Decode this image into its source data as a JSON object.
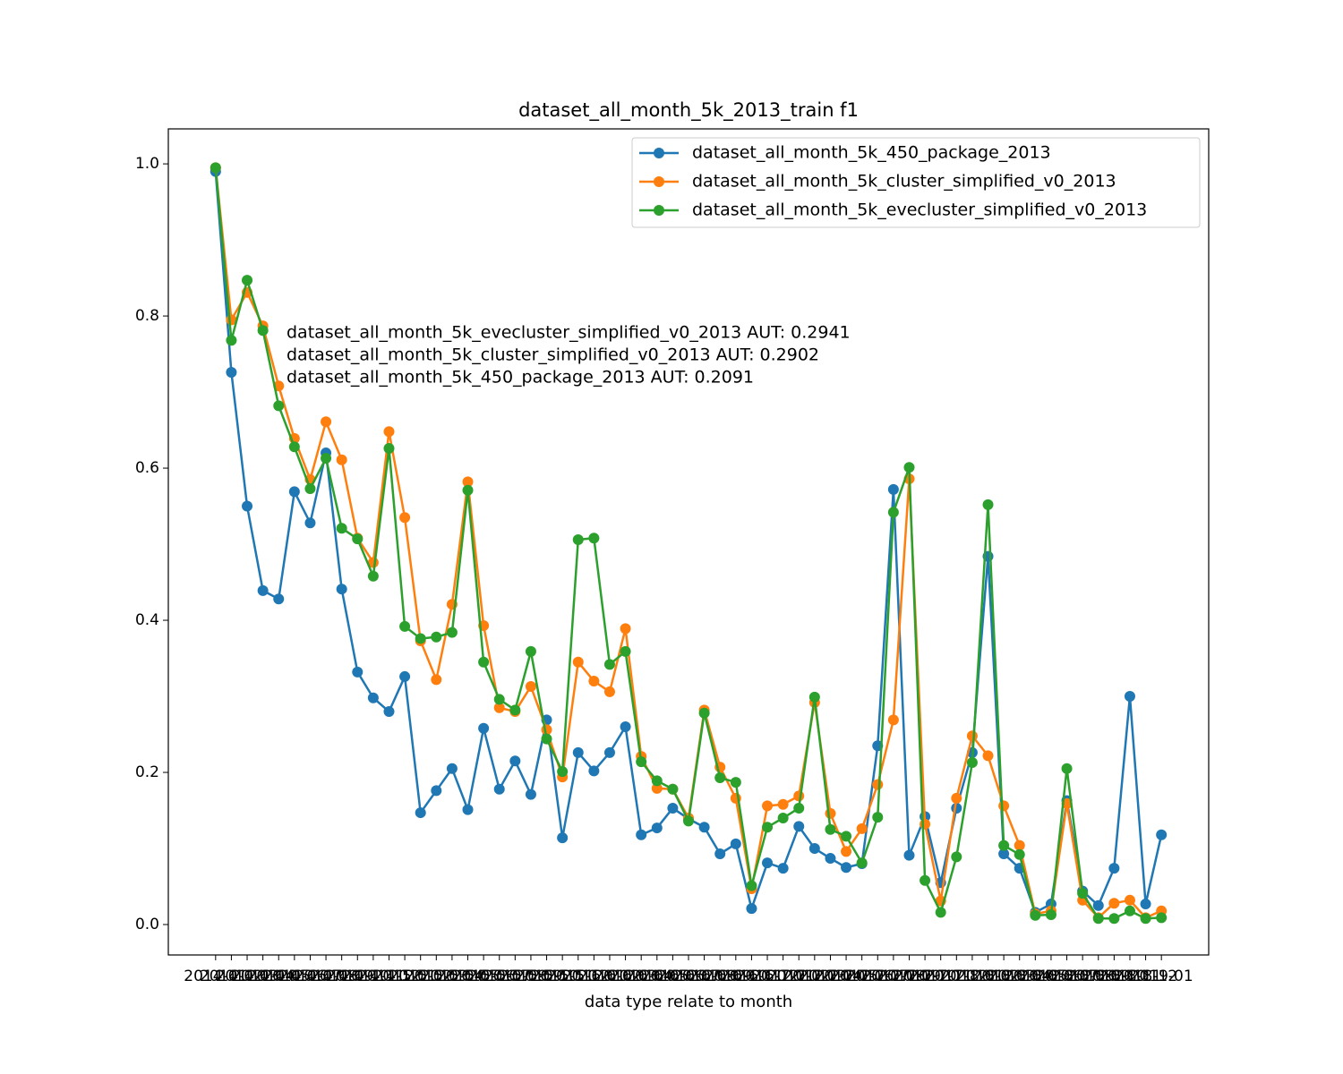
{
  "chart_data": {
    "type": "line",
    "title": "dataset_all_month_5k_2013_train f1",
    "x_label": "data type relate to month",
    "annotations": [
      "dataset_all_month_5k_evecluster_simplified_v0_2013 AUT: 0.2941",
      "dataset_all_month_5k_cluster_simplified_v0_2013 AUT: 0.2902",
      "dataset_all_month_5k_450_package_2013 AUT: 0.2091"
    ],
    "categories": [
      "2014-01",
      "2014-02",
      "2014-03",
      "2014-04",
      "2014-05",
      "2014-06",
      "2014-07",
      "2014-08",
      "2014-09",
      "2014-10",
      "2014-11",
      "2014-12",
      "2015-01",
      "2015-02",
      "2015-03",
      "2015-04",
      "2015-05",
      "2015-06",
      "2015-07",
      "2015-08",
      "2015-09",
      "2015-10",
      "2015-11",
      "2015-12",
      "2016-01",
      "2016-02",
      "2016-03",
      "2016-04",
      "2016-05",
      "2016-06",
      "2016-07",
      "2016-08",
      "2016-09",
      "2016-10",
      "2016-11",
      "2016-12",
      "2017-01",
      "2017-02",
      "2017-03",
      "2017-04",
      "2017-05",
      "2017-06",
      "2017-07",
      "2017-08",
      "2017-09",
      "2017-10",
      "2017-11",
      "2017-12",
      "2018-01",
      "2018-02",
      "2018-03",
      "2018-04",
      "2018-05",
      "2018-06",
      "2018-07",
      "2018-08",
      "2018-09",
      "2018-10",
      "2018-11",
      "2018-12",
      "2019-01"
    ],
    "series": [
      {
        "name": "dataset_all_month_5k_450_package_2013",
        "color": "#1f77b4",
        "values": [
          0.99,
          0.726,
          0.55,
          0.439,
          0.428,
          0.569,
          0.528,
          0.62,
          0.441,
          0.332,
          0.298,
          0.28,
          0.326,
          0.147,
          0.176,
          0.205,
          0.151,
          0.258,
          0.178,
          0.215,
          0.171,
          0.269,
          0.114,
          0.226,
          0.202,
          0.226,
          0.26,
          0.118,
          0.127,
          0.153,
          0.139,
          0.128,
          0.093,
          0.106,
          0.021,
          0.081,
          0.074,
          0.129,
          0.1,
          0.087,
          0.075,
          0.08,
          0.235,
          0.572,
          0.091,
          0.142,
          0.055,
          0.153,
          0.226,
          0.484,
          0.093,
          0.074,
          0.016,
          0.027,
          0.163,
          0.044,
          0.025,
          0.074,
          0.3,
          0.027,
          0.118
        ]
      },
      {
        "name": "dataset_all_month_5k_cluster_simplified_v0_2013",
        "color": "#ff7f0e",
        "values": [
          0.995,
          0.795,
          0.831,
          0.787,
          0.708,
          0.639,
          0.585,
          0.661,
          0.611,
          0.508,
          0.476,
          0.648,
          0.535,
          0.373,
          0.322,
          0.421,
          0.582,
          0.393,
          0.285,
          0.28,
          0.313,
          0.256,
          0.194,
          0.345,
          0.32,
          0.306,
          0.389,
          0.221,
          0.179,
          0.178,
          0.14,
          0.282,
          0.207,
          0.166,
          0.047,
          0.156,
          0.158,
          0.169,
          0.292,
          0.146,
          0.096,
          0.126,
          0.184,
          0.269,
          0.586,
          0.132,
          0.031,
          0.166,
          0.248,
          0.222,
          0.156,
          0.104,
          0.014,
          0.018,
          0.159,
          0.032,
          0.009,
          0.028,
          0.032,
          0.009,
          0.018
        ]
      },
      {
        "name": "dataset_all_month_5k_evecluster_simplified_v0_2013",
        "color": "#2ca02c",
        "values": [
          0.995,
          0.768,
          0.847,
          0.781,
          0.682,
          0.628,
          0.573,
          0.613,
          0.521,
          0.507,
          0.458,
          0.626,
          0.392,
          0.376,
          0.378,
          0.384,
          0.571,
          0.345,
          0.296,
          0.282,
          0.359,
          0.244,
          0.201,
          0.506,
          0.508,
          0.342,
          0.359,
          0.214,
          0.189,
          0.178,
          0.136,
          0.278,
          0.193,
          0.187,
          0.051,
          0.128,
          0.14,
          0.153,
          0.299,
          0.125,
          0.116,
          0.081,
          0.141,
          0.542,
          0.601,
          0.058,
          0.016,
          0.089,
          0.213,
          0.552,
          0.104,
          0.092,
          0.012,
          0.013,
          0.205,
          0.041,
          0.008,
          0.008,
          0.018,
          0.008,
          0.009
        ]
      }
    ],
    "ylim": [
      -0.04,
      1.046
    ],
    "yticks": [
      {
        "value": 0,
        "label": "0.0"
      },
      {
        "value": 0.2,
        "label": "0.2"
      },
      {
        "value": 0.4,
        "label": "0.4"
      },
      {
        "value": 0.6,
        "label": "0.6"
      },
      {
        "value": 0.8,
        "label": "0.8"
      },
      {
        "value": 1,
        "label": "1.0"
      }
    ],
    "legend": "upper right"
  }
}
